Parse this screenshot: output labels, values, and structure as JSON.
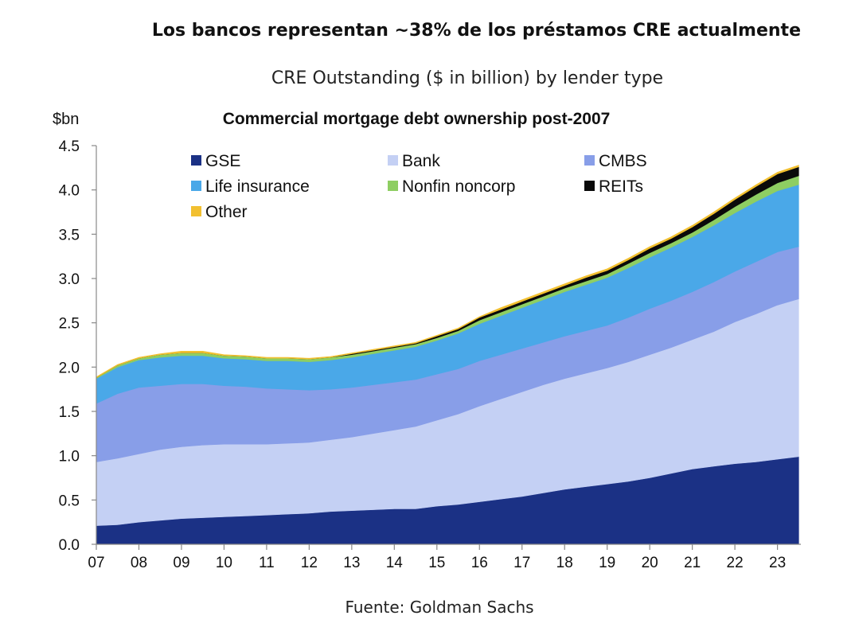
{
  "headline": "Los bancos representan ~38% de los préstamos CRE actualmente",
  "subtitle": "CRE Outstanding ($ in billion) by lender type",
  "source": "Fuente: Goldman Sachs",
  "chart_data": {
    "type": "area",
    "stacked": true,
    "title": "Commercial mortgage debt ownership post-2007",
    "ylabel": "$bn",
    "xlabel": "",
    "ylim": [
      0,
      4.5
    ],
    "yticks": [
      "0.0",
      "0.5",
      "1.0",
      "1.5",
      "2.0",
      "2.5",
      "3.0",
      "3.5",
      "4.0",
      "4.5"
    ],
    "xticks": [
      "07",
      "08",
      "09",
      "10",
      "11",
      "12",
      "13",
      "14",
      "15",
      "16",
      "17",
      "18",
      "19",
      "20",
      "21",
      "22",
      "23"
    ],
    "x": [
      2007.0,
      2007.5,
      2008.0,
      2008.5,
      2009.0,
      2009.5,
      2010.0,
      2010.5,
      2011.0,
      2011.5,
      2012.0,
      2012.5,
      2013.0,
      2013.5,
      2014.0,
      2014.5,
      2015.0,
      2015.5,
      2016.0,
      2016.5,
      2017.0,
      2017.5,
      2018.0,
      2018.5,
      2019.0,
      2019.5,
      2020.0,
      2020.5,
      2021.0,
      2021.5,
      2022.0,
      2022.5,
      2023.0,
      2023.5
    ],
    "legend_placement": "top, inside plot",
    "grid": false,
    "series": [
      {
        "name": "GSE",
        "color": "#1b3185",
        "values": [
          0.21,
          0.22,
          0.25,
          0.27,
          0.29,
          0.3,
          0.31,
          0.32,
          0.33,
          0.34,
          0.35,
          0.37,
          0.38,
          0.39,
          0.4,
          0.4,
          0.43,
          0.45,
          0.48,
          0.51,
          0.54,
          0.58,
          0.62,
          0.65,
          0.68,
          0.71,
          0.75,
          0.8,
          0.85,
          0.88,
          0.91,
          0.93,
          0.96,
          0.99
        ]
      },
      {
        "name": "Bank",
        "color": "#c4d0f4",
        "values": [
          0.72,
          0.75,
          0.77,
          0.8,
          0.81,
          0.82,
          0.82,
          0.81,
          0.8,
          0.8,
          0.8,
          0.81,
          0.83,
          0.86,
          0.89,
          0.93,
          0.97,
          1.02,
          1.08,
          1.13,
          1.18,
          1.22,
          1.25,
          1.28,
          1.31,
          1.35,
          1.39,
          1.42,
          1.46,
          1.52,
          1.6,
          1.67,
          1.74,
          1.78
        ]
      },
      {
        "name": "CMBS",
        "color": "#889ee8",
        "values": [
          0.66,
          0.73,
          0.75,
          0.72,
          0.71,
          0.69,
          0.66,
          0.65,
          0.63,
          0.61,
          0.59,
          0.57,
          0.56,
          0.55,
          0.54,
          0.53,
          0.52,
          0.51,
          0.51,
          0.5,
          0.49,
          0.48,
          0.48,
          0.48,
          0.48,
          0.5,
          0.52,
          0.53,
          0.54,
          0.56,
          0.57,
          0.59,
          0.6,
          0.59
        ]
      },
      {
        "name": "Life insurance",
        "color": "#4aa8e8",
        "values": [
          0.28,
          0.3,
          0.31,
          0.32,
          0.32,
          0.32,
          0.31,
          0.31,
          0.31,
          0.32,
          0.32,
          0.33,
          0.34,
          0.35,
          0.36,
          0.37,
          0.38,
          0.4,
          0.42,
          0.44,
          0.46,
          0.48,
          0.5,
          0.52,
          0.54,
          0.56,
          0.58,
          0.6,
          0.62,
          0.64,
          0.66,
          0.68,
          0.69,
          0.7
        ]
      },
      {
        "name": "Nonfin noncorp",
        "color": "#8ece62",
        "values": [
          0.01,
          0.02,
          0.02,
          0.03,
          0.03,
          0.03,
          0.03,
          0.03,
          0.03,
          0.03,
          0.03,
          0.03,
          0.03,
          0.03,
          0.03,
          0.03,
          0.03,
          0.03,
          0.04,
          0.04,
          0.04,
          0.04,
          0.04,
          0.04,
          0.04,
          0.05,
          0.05,
          0.05,
          0.05,
          0.06,
          0.07,
          0.08,
          0.09,
          0.1
        ]
      },
      {
        "name": "REITs",
        "color": "#0a0a0a",
        "values": [
          0.0,
          0.0,
          0.0,
          0.0,
          0.0,
          0.0,
          0.0,
          0.0,
          0.0,
          0.0,
          0.0,
          0.0,
          0.01,
          0.01,
          0.01,
          0.01,
          0.02,
          0.02,
          0.03,
          0.03,
          0.03,
          0.03,
          0.03,
          0.04,
          0.04,
          0.04,
          0.05,
          0.05,
          0.06,
          0.07,
          0.08,
          0.09,
          0.1,
          0.1
        ]
      },
      {
        "name": "Other",
        "color": "#f2c030",
        "values": [
          0.01,
          0.01,
          0.01,
          0.01,
          0.02,
          0.02,
          0.01,
          0.01,
          0.01,
          0.01,
          0.01,
          0.01,
          0.01,
          0.01,
          0.01,
          0.01,
          0.01,
          0.01,
          0.01,
          0.02,
          0.02,
          0.02,
          0.02,
          0.02,
          0.02,
          0.02,
          0.02,
          0.02,
          0.02,
          0.02,
          0.02,
          0.02,
          0.02,
          0.02
        ]
      }
    ]
  }
}
